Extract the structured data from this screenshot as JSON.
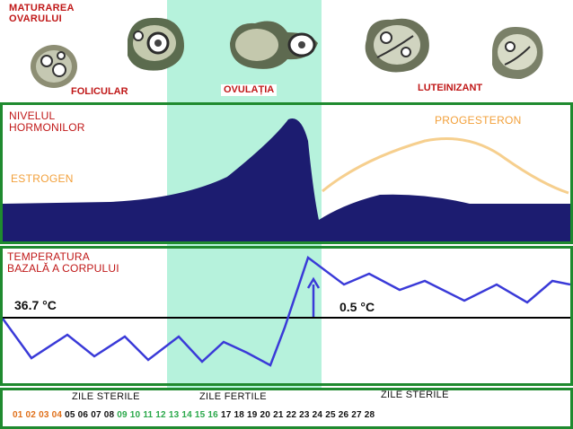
{
  "maturation": {
    "title_line1": "MATURAREA",
    "title_line2": "OVARULUI",
    "phases": [
      "FOLICULAR",
      "OVULAȚIA",
      "LUTEINIZANT"
    ]
  },
  "hormones": {
    "title_line1": "NIVELUL",
    "title_line2": "HORMONILOR",
    "estrogen": "ESTROGEN",
    "progesterone": "PROGESTERON"
  },
  "temperature": {
    "title_line1": "TEMPERATURA",
    "title_line2": "BAZALĂ A CORPULUI",
    "baseline": "36.7 °C",
    "rise": "0.5 °C"
  },
  "cycle": {
    "sterile_before": "ZILE STERILE",
    "fertile": "ZILE FERTILE",
    "sterile_after": "ZILE STERILE",
    "days": [
      "01",
      "02",
      "03",
      "04",
      "05",
      "06",
      "07",
      "08",
      "09",
      "10",
      "11",
      "12",
      "13",
      "14",
      "15",
      "16",
      "17",
      "18",
      "19",
      "20",
      "21",
      "22",
      "23",
      "24",
      "25",
      "26",
      "27",
      "28"
    ],
    "day_colors": {
      "menstrual": "#e0701a",
      "fertile": "#2aa84a",
      "normal": "#111111"
    }
  },
  "colors": {
    "fertile_band": "#b6f2dc",
    "estrogen_fill": "#1c1c70",
    "progesterone_line": "#f6cf8e",
    "temperature_line": "#3a3ad8",
    "panel_border": "#1f8a2f"
  }
}
